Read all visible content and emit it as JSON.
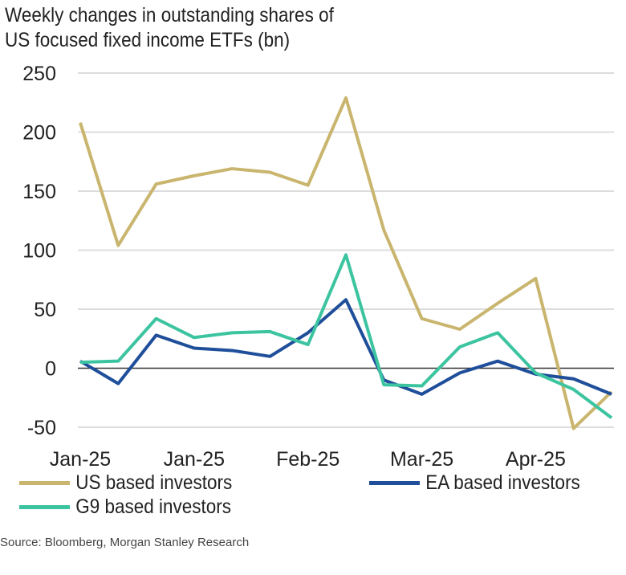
{
  "chart_data": {
    "type": "line",
    "title": "Weekly changes in outstanding shares of US focused fixed income ETFs (bn)",
    "x_tick_labels": [
      "Jan-25",
      "",
      "",
      "Jan-25",
      "",
      "",
      "Feb-25",
      "",
      "",
      "Mar-25",
      "",
      "",
      "Apr-25",
      "",
      ""
    ],
    "ylim": [
      -50,
      250
    ],
    "yticks": [
      250,
      200,
      150,
      100,
      50,
      0,
      -50
    ],
    "grid": true,
    "legend_placement": "bottom",
    "series": [
      {
        "name": "US based investors",
        "color": "#c9b56e",
        "values": [
          208,
          104,
          156,
          163,
          169,
          166,
          155,
          229,
          117,
          42,
          33,
          55,
          76,
          -51,
          -20
        ]
      },
      {
        "name": "EA based investors",
        "color": "#1f4e9a",
        "values": [
          6,
          -13,
          28,
          17,
          15,
          10,
          30,
          58,
          -10,
          -22,
          -4,
          6,
          -5,
          -9,
          -22
        ]
      },
      {
        "name": "G9 based investors",
        "color": "#3cc4a0",
        "values": [
          5,
          6,
          42,
          26,
          30,
          31,
          20,
          96,
          -14,
          -15,
          18,
          30,
          -4,
          -18,
          -42
        ]
      }
    ]
  },
  "title_lines": [
    "Weekly changes in outstanding shares of",
    "US focused fixed income ETFs (bn)"
  ],
  "source": "Source: Bloomberg, Morgan Stanley Research"
}
